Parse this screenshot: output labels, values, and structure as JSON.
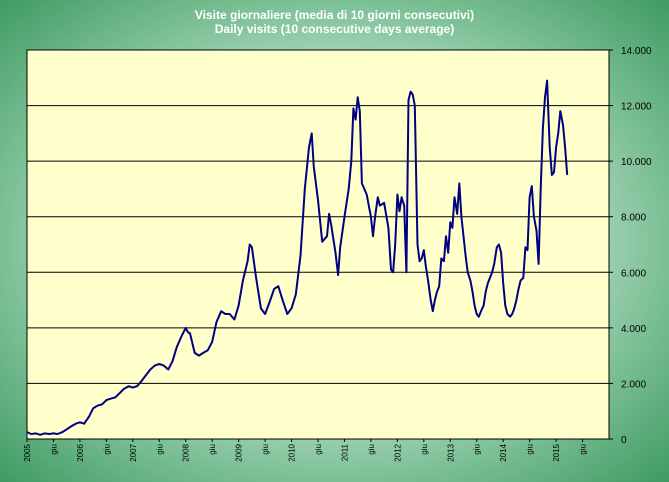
{
  "chart_data": {
    "type": "line",
    "title": "Visite giornaliere (media di 10 giorni consecutivi)",
    "subtitle": "Daily visits (10 consecutive days average)",
    "xlabel": "",
    "ylabel": "",
    "ylim": [
      0,
      14000
    ],
    "y_ticks": [
      0,
      2000,
      4000,
      6000,
      8000,
      10000,
      12000,
      14000
    ],
    "y_tick_labels": [
      "0",
      "2.000",
      "4.000",
      "6.000",
      "8.000",
      "10.000",
      "12.000",
      "14.000"
    ],
    "y_axis_side": "right",
    "grid": true,
    "xlim": [
      2005.0,
      2016.0
    ],
    "x_tick_labels": [
      {
        "x": 2005.0,
        "label": "2005"
      },
      {
        "x": 2005.5,
        "label": "giu"
      },
      {
        "x": 2006.0,
        "label": "2006"
      },
      {
        "x": 2006.5,
        "label": "giu"
      },
      {
        "x": 2007.0,
        "label": "2007"
      },
      {
        "x": 2007.5,
        "label": "giu"
      },
      {
        "x": 2008.0,
        "label": "2008"
      },
      {
        "x": 2008.5,
        "label": "giu"
      },
      {
        "x": 2009.0,
        "label": "2009"
      },
      {
        "x": 2009.5,
        "label": "giu"
      },
      {
        "x": 2010.0,
        "label": "2010"
      },
      {
        "x": 2010.5,
        "label": "giu"
      },
      {
        "x": 2011.0,
        "label": "2011"
      },
      {
        "x": 2011.5,
        "label": "giu"
      },
      {
        "x": 2012.0,
        "label": "2012"
      },
      {
        "x": 2012.5,
        "label": "giu"
      },
      {
        "x": 2013.0,
        "label": "2013"
      },
      {
        "x": 2013.5,
        "label": "giu"
      },
      {
        "x": 2014.0,
        "label": "2014"
      },
      {
        "x": 2014.5,
        "label": "giu"
      },
      {
        "x": 2015.0,
        "label": "2015"
      },
      {
        "x": 2015.5,
        "label": "giu"
      }
    ],
    "series": [
      {
        "name": "Visite giornaliere",
        "color": "#000080",
        "points": [
          [
            2005.0,
            250
          ],
          [
            2005.08,
            180
          ],
          [
            2005.17,
            200
          ],
          [
            2005.25,
            150
          ],
          [
            2005.33,
            200
          ],
          [
            2005.42,
            180
          ],
          [
            2005.5,
            200
          ],
          [
            2005.58,
            180
          ],
          [
            2005.67,
            250
          ],
          [
            2005.75,
            350
          ],
          [
            2005.83,
            450
          ],
          [
            2005.92,
            550
          ],
          [
            2006.0,
            600
          ],
          [
            2006.08,
            550
          ],
          [
            2006.17,
            800
          ],
          [
            2006.25,
            1100
          ],
          [
            2006.33,
            1200
          ],
          [
            2006.42,
            1250
          ],
          [
            2006.5,
            1400
          ],
          [
            2006.58,
            1450
          ],
          [
            2006.67,
            1500
          ],
          [
            2006.75,
            1650
          ],
          [
            2006.83,
            1800
          ],
          [
            2006.92,
            1900
          ],
          [
            2007.0,
            1850
          ],
          [
            2007.08,
            1900
          ],
          [
            2007.17,
            2100
          ],
          [
            2007.25,
            2300
          ],
          [
            2007.33,
            2500
          ],
          [
            2007.42,
            2650
          ],
          [
            2007.5,
            2700
          ],
          [
            2007.58,
            2650
          ],
          [
            2007.67,
            2500
          ],
          [
            2007.75,
            2800
          ],
          [
            2007.83,
            3300
          ],
          [
            2007.92,
            3700
          ],
          [
            2008.0,
            4000
          ],
          [
            2008.04,
            3850
          ],
          [
            2008.08,
            3800
          ],
          [
            2008.17,
            3100
          ],
          [
            2008.25,
            3000
          ],
          [
            2008.33,
            3100
          ],
          [
            2008.42,
            3200
          ],
          [
            2008.5,
            3500
          ],
          [
            2008.58,
            4200
          ],
          [
            2008.67,
            4600
          ],
          [
            2008.75,
            4500
          ],
          [
            2008.83,
            4500
          ],
          [
            2008.92,
            4300
          ],
          [
            2009.0,
            4800
          ],
          [
            2009.08,
            5700
          ],
          [
            2009.17,
            6400
          ],
          [
            2009.21,
            7000
          ],
          [
            2009.25,
            6900
          ],
          [
            2009.33,
            5800
          ],
          [
            2009.42,
            4700
          ],
          [
            2009.5,
            4500
          ],
          [
            2009.58,
            4900
          ],
          [
            2009.67,
            5400
          ],
          [
            2009.75,
            5500
          ],
          [
            2009.83,
            5000
          ],
          [
            2009.92,
            4500
          ],
          [
            2010.0,
            4700
          ],
          [
            2010.08,
            5200
          ],
          [
            2010.17,
            6600
          ],
          [
            2010.25,
            9000
          ],
          [
            2010.33,
            10500
          ],
          [
            2010.38,
            11000
          ],
          [
            2010.42,
            9800
          ],
          [
            2010.5,
            8600
          ],
          [
            2010.58,
            7100
          ],
          [
            2010.67,
            7300
          ],
          [
            2010.71,
            8100
          ],
          [
            2010.75,
            7700
          ],
          [
            2010.83,
            6700
          ],
          [
            2010.88,
            5900
          ],
          [
            2010.92,
            6900
          ],
          [
            2011.0,
            8000
          ],
          [
            2011.08,
            9000
          ],
          [
            2011.13,
            10000
          ],
          [
            2011.17,
            11900
          ],
          [
            2011.21,
            11500
          ],
          [
            2011.25,
            12300
          ],
          [
            2011.29,
            11800
          ],
          [
            2011.33,
            9200
          ],
          [
            2011.42,
            8800
          ],
          [
            2011.5,
            8000
          ],
          [
            2011.54,
            7300
          ],
          [
            2011.58,
            8000
          ],
          [
            2011.63,
            8700
          ],
          [
            2011.67,
            8400
          ],
          [
            2011.75,
            8500
          ],
          [
            2011.83,
            7600
          ],
          [
            2011.88,
            6100
          ],
          [
            2011.92,
            6000
          ],
          [
            2011.96,
            7000
          ],
          [
            2012.0,
            8800
          ],
          [
            2012.04,
            8200
          ],
          [
            2012.08,
            8700
          ],
          [
            2012.13,
            8400
          ],
          [
            2012.17,
            6000
          ],
          [
            2012.21,
            12200
          ],
          [
            2012.25,
            12500
          ],
          [
            2012.29,
            12400
          ],
          [
            2012.33,
            12000
          ],
          [
            2012.38,
            7000
          ],
          [
            2012.42,
            6400
          ],
          [
            2012.46,
            6500
          ],
          [
            2012.5,
            6800
          ],
          [
            2012.54,
            6200
          ],
          [
            2012.58,
            5700
          ],
          [
            2012.63,
            5000
          ],
          [
            2012.67,
            4600
          ],
          [
            2012.71,
            5000
          ],
          [
            2012.75,
            5300
          ],
          [
            2012.79,
            5500
          ],
          [
            2012.83,
            6500
          ],
          [
            2012.88,
            6400
          ],
          [
            2012.92,
            7300
          ],
          [
            2012.96,
            6700
          ],
          [
            2013.0,
            7800
          ],
          [
            2013.04,
            7600
          ],
          [
            2013.08,
            8700
          ],
          [
            2013.13,
            8100
          ],
          [
            2013.17,
            9200
          ],
          [
            2013.21,
            8000
          ],
          [
            2013.25,
            7300
          ],
          [
            2013.29,
            6600
          ],
          [
            2013.33,
            6000
          ],
          [
            2013.38,
            5700
          ],
          [
            2013.42,
            5300
          ],
          [
            2013.46,
            4800
          ],
          [
            2013.5,
            4500
          ],
          [
            2013.54,
            4400
          ],
          [
            2013.58,
            4600
          ],
          [
            2013.63,
            4800
          ],
          [
            2013.67,
            5300
          ],
          [
            2013.71,
            5600
          ],
          [
            2013.75,
            5800
          ],
          [
            2013.79,
            6000
          ],
          [
            2013.83,
            6300
          ],
          [
            2013.88,
            6900
          ],
          [
            2013.92,
            7000
          ],
          [
            2013.96,
            6700
          ],
          [
            2014.0,
            5600
          ],
          [
            2014.04,
            4800
          ],
          [
            2014.08,
            4500
          ],
          [
            2014.13,
            4400
          ],
          [
            2014.17,
            4500
          ],
          [
            2014.21,
            4700
          ],
          [
            2014.25,
            5000
          ],
          [
            2014.29,
            5400
          ],
          [
            2014.33,
            5700
          ],
          [
            2014.38,
            5800
          ],
          [
            2014.42,
            6900
          ],
          [
            2014.46,
            6800
          ],
          [
            2014.5,
            8700
          ],
          [
            2014.54,
            9100
          ],
          [
            2014.58,
            8000
          ],
          [
            2014.63,
            7500
          ],
          [
            2014.67,
            6300
          ],
          [
            2014.71,
            9000
          ],
          [
            2014.75,
            11200
          ],
          [
            2014.79,
            12300
          ],
          [
            2014.83,
            12900
          ],
          [
            2014.88,
            10500
          ],
          [
            2014.92,
            9500
          ],
          [
            2014.96,
            9600
          ],
          [
            2015.0,
            10500
          ],
          [
            2015.04,
            11000
          ],
          [
            2015.08,
            11800
          ],
          [
            2015.13,
            11300
          ],
          [
            2015.17,
            10500
          ],
          [
            2015.21,
            9500
          ]
        ]
      }
    ]
  }
}
